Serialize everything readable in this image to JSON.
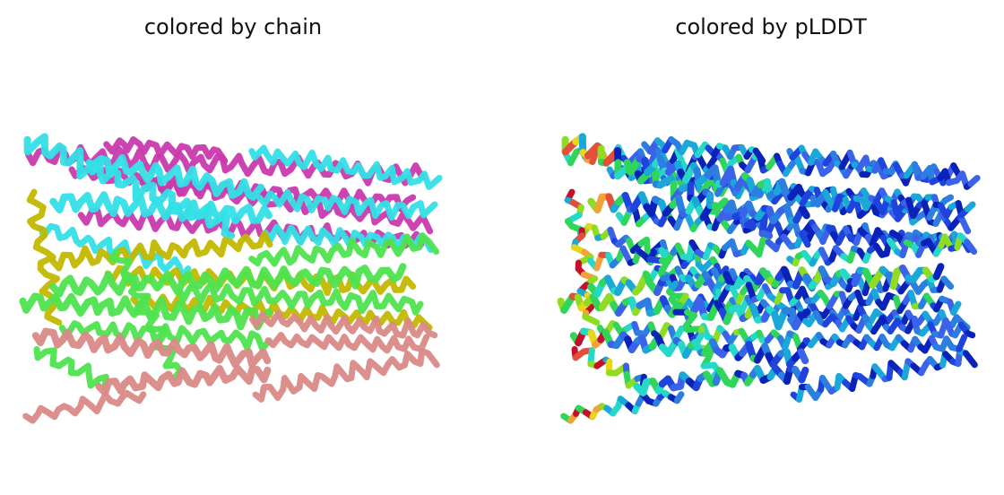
{
  "panels": [
    {
      "title": "colored by chain",
      "color_mode": "chain",
      "chain_colors": [
        "#c93aad",
        "#33dfe6",
        "#c2b800",
        "#4fe34f",
        "#d98a88"
      ]
    },
    {
      "title": "colored by pLDDT",
      "color_mode": "plddt",
      "plddt_colors": [
        "#0a22b8",
        "#1f44dd",
        "#3a63ea",
        "#2c7fe0",
        "#1aa8d8",
        "#26d8c8",
        "#2fd65a",
        "#8fdc22",
        "#e6d71c",
        "#f2a23a",
        "#e0503a",
        "#c4102a"
      ]
    }
  ]
}
